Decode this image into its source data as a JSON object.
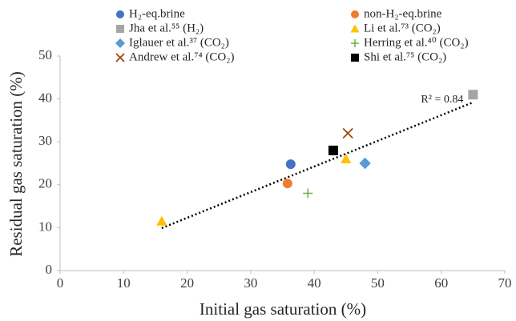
{
  "chart_data": {
    "type": "scatter",
    "x_label": "Initial gas saturation (%)",
    "y_label": "Residual gas saturation (%)",
    "xlim": [
      0,
      70
    ],
    "xticks": [
      0,
      10,
      20,
      30,
      40,
      50,
      60,
      70
    ],
    "ylim": [
      0,
      50
    ],
    "yticks": [
      0,
      10,
      20,
      30,
      40,
      50
    ],
    "grid": false,
    "series": [
      {
        "name": "H₂-eq.brine",
        "color": "#4472c4",
        "marker": "circle",
        "x": [
          36.3
        ],
        "values": [
          24.8
        ]
      },
      {
        "name": "non-H₂-eq.brine",
        "color": "#ed7d31",
        "marker": "circle",
        "x": [
          35.8
        ],
        "values": [
          20.3
        ]
      },
      {
        "name": "Jha et al.⁵⁵ (H₂)",
        "color": "#a5a5a5",
        "marker": "square",
        "x": [
          65
        ],
        "values": [
          41
        ]
      },
      {
        "name": "Li et al.⁷³ (CO₂)",
        "color": "#ffc000",
        "marker": "triangle",
        "x": [
          16,
          45
        ],
        "values": [
          11.5,
          26
        ]
      },
      {
        "name": "Iglauer et al.³⁷  (CO₂)",
        "color": "#5b9bd5",
        "marker": "diamond",
        "x": [
          48
        ],
        "values": [
          25
        ]
      },
      {
        "name": "Herring et al.⁴⁰  (CO₂)",
        "color": "#70ad47",
        "marker": "plus",
        "x": [
          39
        ],
        "values": [
          18
        ]
      },
      {
        "name": "Andrew et al.⁷⁴  (CO₂)",
        "color": "#9e480e",
        "marker": "cross",
        "x": [
          45.3
        ],
        "values": [
          32
        ]
      },
      {
        "name": "Shi et al.⁷⁵ (CO₂)",
        "color": "#000000",
        "marker": "square",
        "x": [
          43
        ],
        "values": [
          28
        ]
      }
    ],
    "trendline": {
      "label": "R² = 0.84",
      "color": "#000000",
      "x": [
        16,
        65
      ],
      "values": [
        9.9,
        39.2
      ]
    }
  }
}
